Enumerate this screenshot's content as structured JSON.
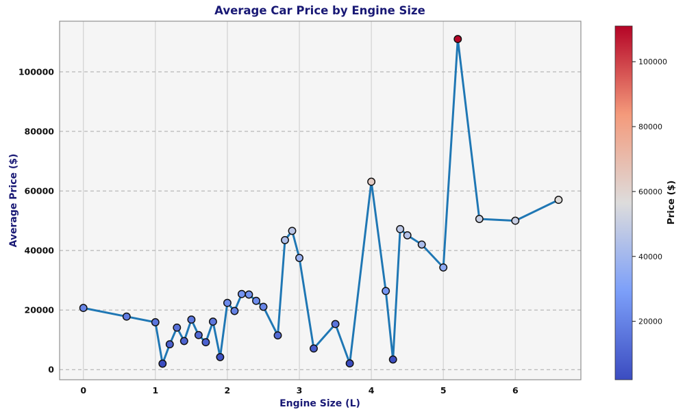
{
  "colors": {
    "title": "#191975",
    "axis_label": "#191975",
    "tick_label": "#111111",
    "line": "#1f77b4",
    "marker_edge": "#111111",
    "plot_bg": "#f5f5f5",
    "figure_bg": "#ffffff",
    "grid_vertical": "#d6d6d6",
    "grid_horizontal": "#a8a8a8",
    "spine": "#8f8f8f",
    "colorbar_border": "#333333",
    "colormap_stops": [
      "#3b4cc0",
      "#7c9ff9",
      "#dddcdc",
      "#f49a7b",
      "#b40426"
    ]
  },
  "chart_data": {
    "type": "line",
    "title": "Average Car Price by Engine Size",
    "xlabel": "Engine Size (L)",
    "ylabel": "Average Price ($)",
    "colorbar_label": "Price ($)",
    "marker_colormap": "coolwarm",
    "grid": true,
    "x": [
      0.0,
      0.6,
      1.0,
      1.1,
      1.2,
      1.3,
      1.4,
      1.5,
      1.6,
      1.7,
      1.8,
      1.9,
      2.0,
      2.1,
      2.2,
      2.3,
      2.4,
      2.5,
      2.7,
      2.8,
      2.9,
      3.0,
      3.2,
      3.5,
      3.7,
      4.0,
      4.2,
      4.3,
      4.4,
      4.5,
      4.7,
      5.0,
      5.2,
      5.5,
      6.0,
      6.6
    ],
    "y": [
      20700,
      17800,
      15900,
      2000,
      8500,
      14100,
      9600,
      16800,
      11600,
      9200,
      16100,
      4200,
      22400,
      19700,
      25400,
      25200,
      23100,
      21100,
      11500,
      43500,
      46600,
      37500,
      7100,
      15300,
      2100,
      63100,
      26400,
      3400,
      47200,
      45100,
      42000,
      34300,
      111000,
      50600,
      50000,
      57000
    ],
    "x_ticks": [
      0,
      1,
      2,
      3,
      4,
      5,
      6
    ],
    "y_ticks": [
      0,
      20000,
      40000,
      60000,
      80000,
      100000
    ],
    "colorbar_ticks": [
      20000,
      40000,
      60000,
      80000,
      100000
    ],
    "xlim": [
      -0.33,
      6.91
    ],
    "ylim": [
      -3400,
      117000
    ],
    "color_range": [
      2000,
      111000
    ]
  }
}
